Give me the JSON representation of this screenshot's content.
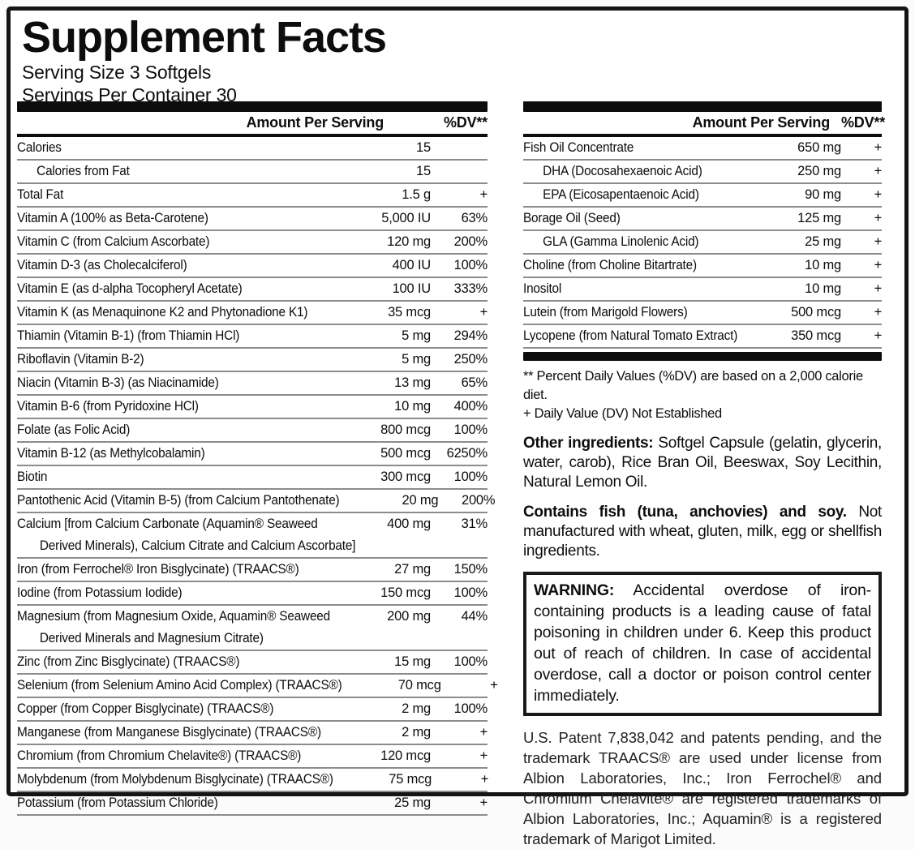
{
  "header": {
    "title": "Supplement Facts",
    "serving_size": "Serving Size 3 Softgels",
    "servings_per_container": "Servings Per Container 30"
  },
  "left_table": {
    "header": {
      "amount": "Amount Per Serving",
      "dv": "%DV**"
    },
    "rows": [
      {
        "name": "Calories",
        "amount": "15",
        "dv": "",
        "indent": false
      },
      {
        "name": "Calories from Fat",
        "amount": "15",
        "dv": "",
        "indent": true
      },
      {
        "name": "Total Fat",
        "amount": "1.5 g",
        "dv": "+",
        "indent": false
      },
      {
        "name": "Vitamin A (100% as Beta-Carotene)",
        "amount": "5,000 IU",
        "dv": "63%",
        "indent": false
      },
      {
        "name": "Vitamin C (from Calcium Ascorbate)",
        "amount": "120 mg",
        "dv": "200%",
        "indent": false
      },
      {
        "name": "Vitamin D-3 (as Cholecalciferol)",
        "amount": "400 IU",
        "dv": "100%",
        "indent": false
      },
      {
        "name": "Vitamin E (as d-alpha Tocopheryl Acetate)",
        "amount": "100 IU",
        "dv": "333%",
        "indent": false
      },
      {
        "name": "Vitamin K (as Menaquinone K2 and Phytonadione K1)",
        "amount": "35 mcg",
        "dv": "+",
        "indent": false
      },
      {
        "name": "Thiamin (Vitamin B-1) (from Thiamin HCl)",
        "amount": "5 mg",
        "dv": "294%",
        "indent": false
      },
      {
        "name": "Riboflavin (Vitamin B-2)",
        "amount": "5 mg",
        "dv": "250%",
        "indent": false
      },
      {
        "name": "Niacin (Vitamin B-3) (as Niacinamide)",
        "amount": "13 mg",
        "dv": "65%",
        "indent": false
      },
      {
        "name": "Vitamin B-6 (from Pyridoxine HCl)",
        "amount": "10 mg",
        "dv": "400%",
        "indent": false
      },
      {
        "name": "Folate (as Folic Acid)",
        "amount": "800 mcg",
        "dv": "100%",
        "indent": false
      },
      {
        "name": "Vitamin B-12 (as Methylcobalamin)",
        "amount": "500 mcg",
        "dv": "6250%",
        "indent": false
      },
      {
        "name": "Biotin",
        "amount": "300 mcg",
        "dv": "100%",
        "indent": false
      },
      {
        "name": "Pantothenic Acid (Vitamin B-5) (from Calcium Pantothenate)",
        "amount": "20 mg",
        "dv": "200%",
        "indent": false
      },
      {
        "name": "Calcium [from Calcium Carbonate (Aquamin® Seaweed",
        "name2": "Derived Minerals), Calcium Citrate and Calcium Ascorbate]",
        "amount": "400 mg",
        "dv": "31%",
        "indent": false
      },
      {
        "name": "Iron (from Ferrochel® Iron Bisglycinate) (TRAACS®)",
        "amount": "27 mg",
        "dv": "150%",
        "indent": false
      },
      {
        "name": "Iodine (from Potassium Iodide)",
        "amount": "150 mcg",
        "dv": "100%",
        "indent": false
      },
      {
        "name": "Magnesium (from Magnesium Oxide, Aquamin® Seaweed",
        "name2": "Derived Minerals and Magnesium Citrate)",
        "amount": "200 mg",
        "dv": "44%",
        "indent": false
      },
      {
        "name": "Zinc (from Zinc Bisglycinate) (TRAACS®)",
        "amount": "15 mg",
        "dv": "100%",
        "indent": false
      },
      {
        "name": "Selenium (from Selenium Amino Acid Complex) (TRAACS®)",
        "amount": "70 mcg",
        "dv": "+",
        "indent": false
      },
      {
        "name": "Copper (from Copper Bisglycinate) (TRAACS®)",
        "amount": "2 mg",
        "dv": "100%",
        "indent": false
      },
      {
        "name": "Manganese (from Manganese Bisglycinate) (TRAACS®)",
        "amount": "2 mg",
        "dv": "+",
        "indent": false
      },
      {
        "name": "Chromium (from Chromium Chelavite®) (TRAACS®)",
        "amount": "120 mcg",
        "dv": "+",
        "indent": false
      },
      {
        "name": "Molybdenum (from Molybdenum Bisglycinate) (TRAACS®)",
        "amount": "75 mcg",
        "dv": "+",
        "indent": false
      },
      {
        "name": "Potassium (from Potassium Chloride)",
        "amount": "25 mg",
        "dv": "+",
        "indent": false
      }
    ]
  },
  "right_table": {
    "header": {
      "amount": "Amount Per Serving",
      "dv": "%DV**"
    },
    "rows": [
      {
        "name": "Fish Oil Concentrate",
        "amount": "650 mg",
        "dv": "+",
        "indent": false
      },
      {
        "name": "DHA (Docosahexaenoic Acid)",
        "amount": "250 mg",
        "dv": "+",
        "indent": true
      },
      {
        "name": "EPA (Eicosapentaenoic Acid)",
        "amount": "90 mg",
        "dv": "+",
        "indent": true
      },
      {
        "name": "Borage Oil (Seed)",
        "amount": "125 mg",
        "dv": "+",
        "indent": false
      },
      {
        "name": "GLA (Gamma Linolenic Acid)",
        "amount": "25 mg",
        "dv": "+",
        "indent": true
      },
      {
        "name": "Choline (from Choline Bitartrate)",
        "amount": "10 mg",
        "dv": "+",
        "indent": false
      },
      {
        "name": "Inositol",
        "amount": "10 mg",
        "dv": "+",
        "indent": false
      },
      {
        "name": "Lutein (from Marigold Flowers)",
        "amount": "500 mcg",
        "dv": "+",
        "indent": false
      },
      {
        "name": "Lycopene (from Natural Tomato Extract)",
        "amount": "350 mcg",
        "dv": "+",
        "indent": false
      }
    ]
  },
  "footnotes": {
    "percent_dv": "** Percent Daily Values (%DV) are based on a 2,000 calorie diet.",
    "not_established": "+ Daily Value (DV) Not Established"
  },
  "other_ingredients": {
    "label": "Other ingredients:",
    "text": " Softgel Capsule (gelatin, glycerin, water, carob), Rice Bran Oil, Beeswax, Soy Lecithin, Natural Lemon Oil."
  },
  "contains": {
    "label": "Contains fish (tuna, anchovies) and soy.",
    "text": " Not manufactured with wheat, gluten, milk, egg or shellfish ingredients."
  },
  "warning": {
    "label": "WARNING:",
    "text": " Accidental overdose of iron-containing products is a leading cause of fatal poisoning in children under 6. Keep this product out of reach of children. In case of accidental overdose, call a doctor or poison control center immediately."
  },
  "patent": "U.S. Patent 7,838,042 and patents pending, and the trademark TRAACS® are used under license from Albion Laboratories, Inc.; Iron Ferrochel® and Chromium Chelavite® are registered trademarks of Albion Laboratories, Inc.; Aquamin® is a registered trademark of Marigot Limited."
}
